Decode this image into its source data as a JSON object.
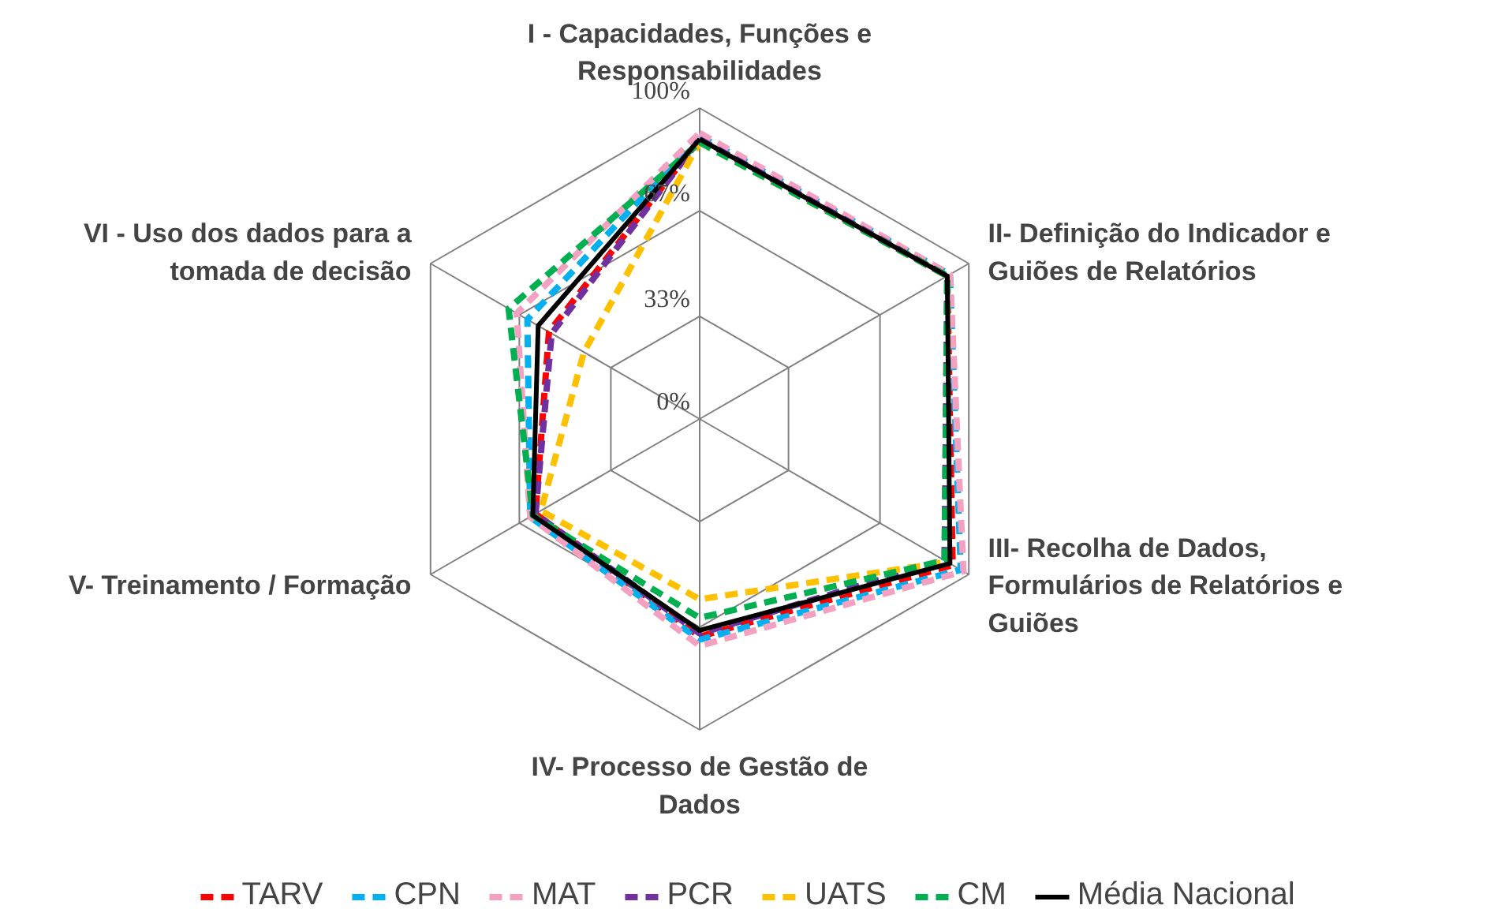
{
  "chart_data": {
    "type": "radar",
    "categories": [
      "I - Capacidades, Funções e Responsabilidades",
      "II- Definição do Indicador e Guiões de Relatórios",
      "III- Recolha de Dados, Formulários de Relatórios e Guiões",
      "IV- Processo de Gestão de Dados",
      "V- Treinamento / Formação",
      "VI - Uso dos dados para a tomada de decisão"
    ],
    "ylim": [
      0,
      100
    ],
    "yticks": [
      {
        "value": 0,
        "label": "0%"
      },
      {
        "value": 33,
        "label": "33%"
      },
      {
        "value": 67,
        "label": "67%"
      },
      {
        "value": 100,
        "label": "100%"
      }
    ],
    "grid": true,
    "legend": "bottom",
    "line_style": "dashed",
    "marker": "none",
    "series": [
      {
        "name": "TARV",
        "color": "#ff0000",
        "values": [
          90,
          92,
          94,
          70,
          61,
          56
        ]
      },
      {
        "name": "CPN",
        "color": "#00b0f0",
        "values": [
          91,
          93,
          97,
          71,
          63,
          64
        ]
      },
      {
        "name": "MAT",
        "color": "#f4a0c0",
        "values": [
          92,
          93,
          98,
          73,
          63,
          68
        ]
      },
      {
        "name": "PCR",
        "color": "#7030a0",
        "values": [
          90,
          92,
          91,
          69,
          61,
          55
        ]
      },
      {
        "name": "UATS",
        "color": "#ffc000",
        "values": [
          89,
          92,
          92,
          58,
          59,
          43
        ]
      },
      {
        "name": "CM",
        "color": "#00b050",
        "values": [
          89,
          92,
          91,
          64,
          62,
          71
        ]
      },
      {
        "name": "Média Nacional",
        "color": "#000000",
        "line_style": "solid",
        "values": [
          90,
          92,
          93,
          68,
          62,
          60
        ]
      }
    ]
  }
}
